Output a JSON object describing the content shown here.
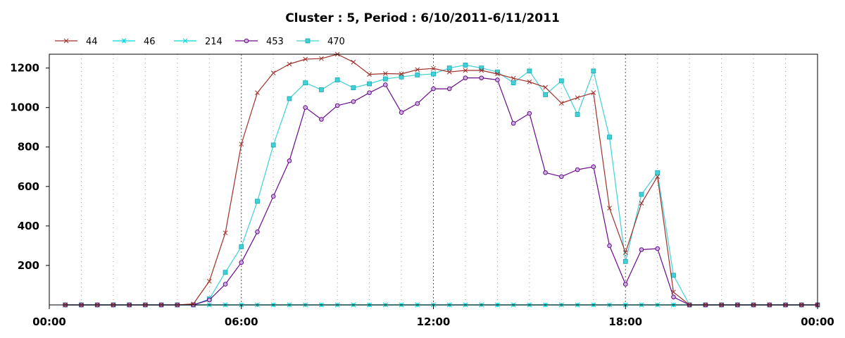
{
  "chart_data": {
    "type": "line",
    "title": "Cluster : 5, Period : 6/10/2011-6/11/2011",
    "xlabel": "",
    "ylabel": "",
    "x_ticks": [
      "00:00",
      "06:00",
      "12:00",
      "18:00",
      "00:00"
    ],
    "y_ticks": [
      200,
      400,
      600,
      800,
      1000,
      1200
    ],
    "xlim_hours": [
      0,
      24
    ],
    "ylim": [
      0,
      1270
    ],
    "grid": "vertical-dotted",
    "legend_position": "top-left",
    "series": [
      {
        "name": "44",
        "color": "#a0302a",
        "marker": "x",
        "points": [
          [
            0.5,
            0
          ],
          [
            1,
            0
          ],
          [
            1.5,
            0
          ],
          [
            2,
            0
          ],
          [
            2.5,
            0
          ],
          [
            3,
            0
          ],
          [
            3.5,
            0
          ],
          [
            4,
            0
          ],
          [
            4.5,
            5
          ],
          [
            5,
            120
          ],
          [
            5.5,
            365
          ],
          [
            6,
            815
          ],
          [
            6.5,
            1075
          ],
          [
            7,
            1175
          ],
          [
            7.5,
            1220
          ],
          [
            8,
            1245
          ],
          [
            8.5,
            1248
          ],
          [
            9,
            1270
          ],
          [
            9.5,
            1230
          ],
          [
            10,
            1168
          ],
          [
            10.5,
            1172
          ],
          [
            11,
            1170
          ],
          [
            11.5,
            1192
          ],
          [
            12,
            1198
          ],
          [
            12.5,
            1180
          ],
          [
            13,
            1188
          ],
          [
            13.5,
            1188
          ],
          [
            14,
            1170
          ],
          [
            14.5,
            1148
          ],
          [
            15,
            1130
          ],
          [
            15.5,
            1102
          ],
          [
            16,
            1022
          ],
          [
            16.5,
            1050
          ],
          [
            17,
            1075
          ],
          [
            17.5,
            490
          ],
          [
            18,
            265
          ],
          [
            18.5,
            515
          ],
          [
            19,
            650
          ],
          [
            19.5,
            65
          ],
          [
            20,
            0
          ],
          [
            20.5,
            0
          ],
          [
            21,
            0
          ],
          [
            21.5,
            0
          ],
          [
            22,
            0
          ],
          [
            22.5,
            0
          ],
          [
            23,
            0
          ],
          [
            23.5,
            0
          ],
          [
            24,
            0
          ]
        ]
      },
      {
        "name": "46",
        "color": "#00d8d8",
        "marker": "asterisk",
        "points": [
          [
            0.5,
            0
          ],
          [
            1,
            0
          ],
          [
            1.5,
            0
          ],
          [
            2,
            0
          ],
          [
            2.5,
            0
          ],
          [
            3,
            0
          ],
          [
            3.5,
            0
          ],
          [
            4,
            0
          ],
          [
            4.5,
            0
          ],
          [
            5,
            0
          ],
          [
            5.5,
            0
          ],
          [
            6,
            0
          ],
          [
            6.5,
            0
          ],
          [
            7,
            0
          ],
          [
            7.5,
            0
          ],
          [
            8,
            0
          ],
          [
            8.5,
            0
          ],
          [
            9,
            0
          ],
          [
            9.5,
            0
          ],
          [
            10,
            0
          ],
          [
            10.5,
            0
          ],
          [
            11,
            0
          ],
          [
            11.5,
            0
          ],
          [
            12,
            0
          ],
          [
            12.5,
            0
          ],
          [
            13,
            0
          ],
          [
            13.5,
            0
          ],
          [
            14,
            0
          ],
          [
            14.5,
            0
          ],
          [
            15,
            0
          ],
          [
            15.5,
            0
          ],
          [
            16,
            0
          ],
          [
            16.5,
            0
          ],
          [
            17,
            0
          ],
          [
            17.5,
            0
          ],
          [
            18,
            0
          ],
          [
            18.5,
            0
          ],
          [
            19,
            0
          ],
          [
            19.5,
            0
          ],
          [
            20,
            0
          ],
          [
            20.5,
            0
          ],
          [
            21,
            0
          ],
          [
            21.5,
            0
          ],
          [
            22,
            0
          ],
          [
            22.5,
            0
          ],
          [
            23,
            0
          ],
          [
            23.5,
            0
          ],
          [
            24,
            0
          ]
        ]
      },
      {
        "name": "214",
        "color": "#00d8d8",
        "marker": "x",
        "points": [
          [
            0.5,
            0
          ],
          [
            1,
            0
          ],
          [
            1.5,
            0
          ],
          [
            2,
            0
          ],
          [
            2.5,
            0
          ],
          [
            3,
            0
          ],
          [
            3.5,
            0
          ],
          [
            4,
            0
          ],
          [
            4.5,
            0
          ],
          [
            5,
            0
          ],
          [
            5.5,
            0
          ],
          [
            6,
            0
          ],
          [
            6.5,
            0
          ],
          [
            7,
            0
          ],
          [
            7.5,
            0
          ],
          [
            8,
            0
          ],
          [
            8.5,
            0
          ],
          [
            9,
            0
          ],
          [
            9.5,
            0
          ],
          [
            10,
            0
          ],
          [
            10.5,
            0
          ],
          [
            11,
            0
          ],
          [
            11.5,
            0
          ],
          [
            12,
            0
          ],
          [
            12.5,
            0
          ],
          [
            13,
            0
          ],
          [
            13.5,
            0
          ],
          [
            14,
            0
          ],
          [
            14.5,
            0
          ],
          [
            15,
            0
          ],
          [
            15.5,
            0
          ],
          [
            16,
            0
          ],
          [
            16.5,
            0
          ],
          [
            17,
            0
          ],
          [
            17.5,
            0
          ],
          [
            18,
            0
          ],
          [
            18.5,
            0
          ],
          [
            19,
            0
          ],
          [
            19.5,
            0
          ],
          [
            20,
            0
          ],
          [
            20.5,
            0
          ],
          [
            21,
            0
          ],
          [
            21.5,
            0
          ],
          [
            22,
            0
          ],
          [
            22.5,
            0
          ],
          [
            23,
            0
          ],
          [
            23.5,
            0
          ],
          [
            24,
            0
          ]
        ]
      },
      {
        "name": "453",
        "color": "#6a0a8a",
        "marker": "circle",
        "points": [
          [
            0.5,
            0
          ],
          [
            1,
            0
          ],
          [
            1.5,
            0
          ],
          [
            2,
            0
          ],
          [
            2.5,
            0
          ],
          [
            3,
            0
          ],
          [
            3.5,
            0
          ],
          [
            4,
            0
          ],
          [
            4.5,
            0
          ],
          [
            5,
            25
          ],
          [
            5.5,
            105
          ],
          [
            6,
            215
          ],
          [
            6.5,
            370
          ],
          [
            7,
            550
          ],
          [
            7.5,
            730
          ],
          [
            8,
            1000
          ],
          [
            8.5,
            940
          ],
          [
            9,
            1010
          ],
          [
            9.5,
            1030
          ],
          [
            10,
            1075
          ],
          [
            10.5,
            1115
          ],
          [
            11,
            975
          ],
          [
            11.5,
            1020
          ],
          [
            12,
            1095
          ],
          [
            12.5,
            1095
          ],
          [
            13,
            1150
          ],
          [
            13.5,
            1150
          ],
          [
            14,
            1140
          ],
          [
            14.5,
            920
          ],
          [
            15,
            970
          ],
          [
            15.5,
            670
          ],
          [
            16,
            650
          ],
          [
            16.5,
            685
          ],
          [
            17,
            700
          ],
          [
            17.5,
            300
          ],
          [
            18,
            105
          ],
          [
            18.5,
            280
          ],
          [
            19,
            285
          ],
          [
            19.5,
            40
          ],
          [
            20,
            0
          ],
          [
            20.5,
            0
          ],
          [
            21,
            0
          ],
          [
            21.5,
            0
          ],
          [
            22,
            0
          ],
          [
            22.5,
            0
          ],
          [
            23,
            0
          ],
          [
            23.5,
            0
          ],
          [
            24,
            0
          ]
        ]
      },
      {
        "name": "470",
        "color": "#40d0d8",
        "marker": "square",
        "points": [
          [
            0.5,
            0
          ],
          [
            1,
            0
          ],
          [
            1.5,
            0
          ],
          [
            2,
            0
          ],
          [
            2.5,
            0
          ],
          [
            3,
            0
          ],
          [
            3.5,
            0
          ],
          [
            4,
            0
          ],
          [
            4.5,
            0
          ],
          [
            5,
            30
          ],
          [
            5.5,
            165
          ],
          [
            6,
            295
          ],
          [
            6.5,
            525
          ],
          [
            7,
            810
          ],
          [
            7.5,
            1045
          ],
          [
            8,
            1125
          ],
          [
            8.5,
            1090
          ],
          [
            9,
            1140
          ],
          [
            9.5,
            1100
          ],
          [
            10,
            1120
          ],
          [
            10.5,
            1145
          ],
          [
            11,
            1155
          ],
          [
            11.5,
            1165
          ],
          [
            12,
            1170
          ],
          [
            12.5,
            1200
          ],
          [
            13,
            1215
          ],
          [
            13.5,
            1200
          ],
          [
            14,
            1180
          ],
          [
            14.5,
            1125
          ],
          [
            15,
            1185
          ],
          [
            15.5,
            1065
          ],
          [
            16,
            1135
          ],
          [
            16.5,
            965
          ],
          [
            17,
            1185
          ],
          [
            17.5,
            850
          ],
          [
            18,
            220
          ],
          [
            18.5,
            560
          ],
          [
            19,
            670
          ],
          [
            19.5,
            150
          ],
          [
            20,
            0
          ],
          [
            20.5,
            0
          ],
          [
            21,
            0
          ],
          [
            21.5,
            0
          ],
          [
            22,
            0
          ],
          [
            22.5,
            0
          ],
          [
            23,
            0
          ],
          [
            23.5,
            0
          ],
          [
            24,
            0
          ]
        ]
      }
    ]
  }
}
